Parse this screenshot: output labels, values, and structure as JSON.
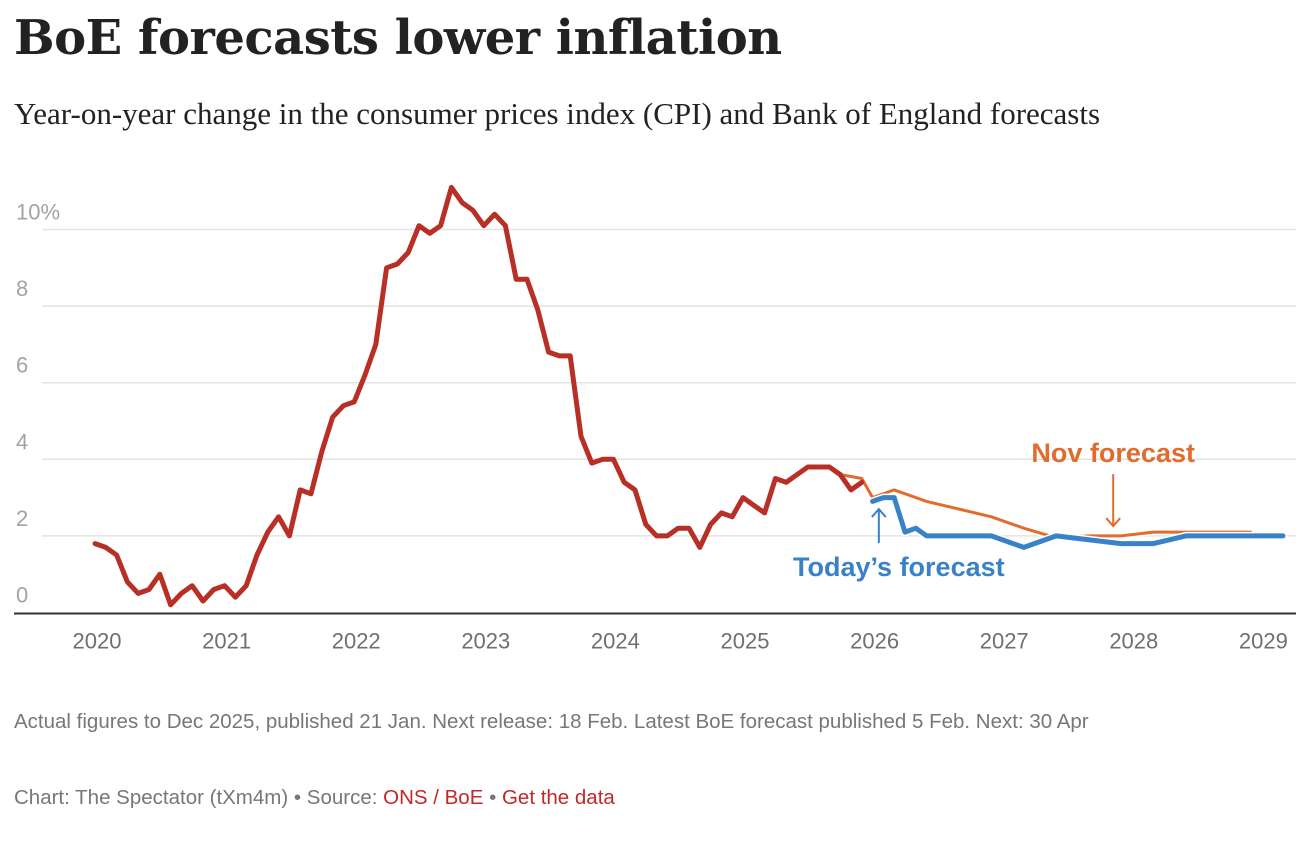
{
  "header": {
    "title": "BoE forecasts lower inflation",
    "subtitle": "Year-on-year change in the consumer prices index (CPI) and Bank of England forecasts"
  },
  "footer": {
    "note": "Actual figures to Dec 2025, published 21 Jan. Next release: 18 Feb. Latest BoE forecast published 5 Feb. Next: 30 Apr",
    "credit_prefix": "Chart: The Spectator (tXm4m)",
    "separator": " • ",
    "source_label": "Source: ",
    "source_link": "ONS / BoE",
    "get_data_link": "Get the data"
  },
  "colors": {
    "cpi": "#b82f26",
    "nov_forecast": "#e06c2e",
    "todays_forecast": "#3a82c8",
    "gridline": "#e3e3e3",
    "axis": "#333333"
  },
  "chart_data": {
    "type": "line",
    "title": "BoE forecasts lower inflation",
    "subtitle": "Year-on-year change in the consumer prices index (CPI) and Bank of England forecasts",
    "xlabel": "",
    "ylabel": "",
    "x_unit": "months since Jan 2020",
    "xlim": [
      0,
      111
    ],
    "ylim": [
      0,
      11.2
    ],
    "grid": true,
    "y_ticks": [
      {
        "value": 0,
        "label": "0"
      },
      {
        "value": 2,
        "label": "2"
      },
      {
        "value": 4,
        "label": "4"
      },
      {
        "value": 6,
        "label": "6"
      },
      {
        "value": 8,
        "label": "8"
      },
      {
        "value": 10,
        "label": "10%"
      }
    ],
    "x_ticks": [
      {
        "value": 0,
        "label": "2020"
      },
      {
        "value": 12,
        "label": "2021"
      },
      {
        "value": 24,
        "label": "2022"
      },
      {
        "value": 36,
        "label": "2023"
      },
      {
        "value": 48,
        "label": "2024"
      },
      {
        "value": 60,
        "label": "2025"
      },
      {
        "value": 72,
        "label": "2026"
      },
      {
        "value": 84,
        "label": "2027"
      },
      {
        "value": 96,
        "label": "2028"
      },
      {
        "value": 108,
        "label": "2029"
      }
    ],
    "series": [
      {
        "name": "CPI",
        "key": "cpi",
        "start": "Jan 2020",
        "values": [
          1.8,
          1.7,
          1.5,
          0.8,
          0.5,
          0.6,
          1.0,
          0.2,
          0.5,
          0.7,
          0.3,
          0.6,
          0.7,
          0.4,
          0.7,
          1.5,
          2.1,
          2.5,
          2.0,
          3.2,
          3.1,
          4.2,
          5.1,
          5.4,
          5.5,
          6.2,
          7.0,
          9.0,
          9.1,
          9.4,
          10.1,
          9.9,
          10.1,
          11.1,
          10.7,
          10.5,
          10.1,
          10.4,
          10.1,
          8.7,
          8.7,
          7.9,
          6.8,
          6.7,
          6.7,
          4.6,
          3.9,
          4.0,
          4.0,
          3.4,
          3.2,
          2.3,
          2.0,
          2.0,
          2.2,
          2.2,
          1.7,
          2.3,
          2.6,
          2.5,
          3.0,
          2.8,
          2.6,
          3.5,
          3.4,
          3.6,
          3.8,
          3.8,
          3.8,
          3.6,
          3.2,
          3.4
        ]
      },
      {
        "name": "Nov forecast",
        "key": "nov_forecast",
        "points": [
          [
            69,
            3.6
          ],
          [
            70,
            3.55
          ],
          [
            71,
            3.5
          ],
          [
            72,
            3.0
          ],
          [
            73,
            3.1
          ],
          [
            74,
            3.2
          ],
          [
            76,
            3.0
          ],
          [
            77,
            2.9
          ],
          [
            83,
            2.5
          ],
          [
            86,
            2.2
          ],
          [
            89,
            1.95
          ],
          [
            92,
            2.0
          ],
          [
            95,
            2.0
          ],
          [
            98,
            2.1
          ],
          [
            101,
            2.1
          ],
          [
            107,
            2.1
          ]
        ]
      },
      {
        "name": "Today's forecast",
        "key": "todays_forecast",
        "points": [
          [
            72,
            2.9
          ],
          [
            73,
            3.0
          ],
          [
            74,
            3.0
          ],
          [
            75,
            2.1
          ],
          [
            76,
            2.2
          ],
          [
            77,
            2.0
          ],
          [
            83,
            2.0
          ],
          [
            86,
            1.7
          ],
          [
            89,
            2.0
          ],
          [
            95,
            1.8
          ],
          [
            98,
            1.8
          ],
          [
            101,
            2.0
          ],
          [
            110,
            2.0
          ]
        ]
      }
    ],
    "annotations": [
      {
        "text": "Nov forecast",
        "series": "nov_forecast",
        "arrow": "down",
        "x": 94,
        "y": 2.1
      },
      {
        "text": "Today’s forecast",
        "series": "todays_forecast",
        "arrow": "up",
        "x": 72.3,
        "y": 2.7
      }
    ],
    "legend": "none (inline annotations)"
  }
}
